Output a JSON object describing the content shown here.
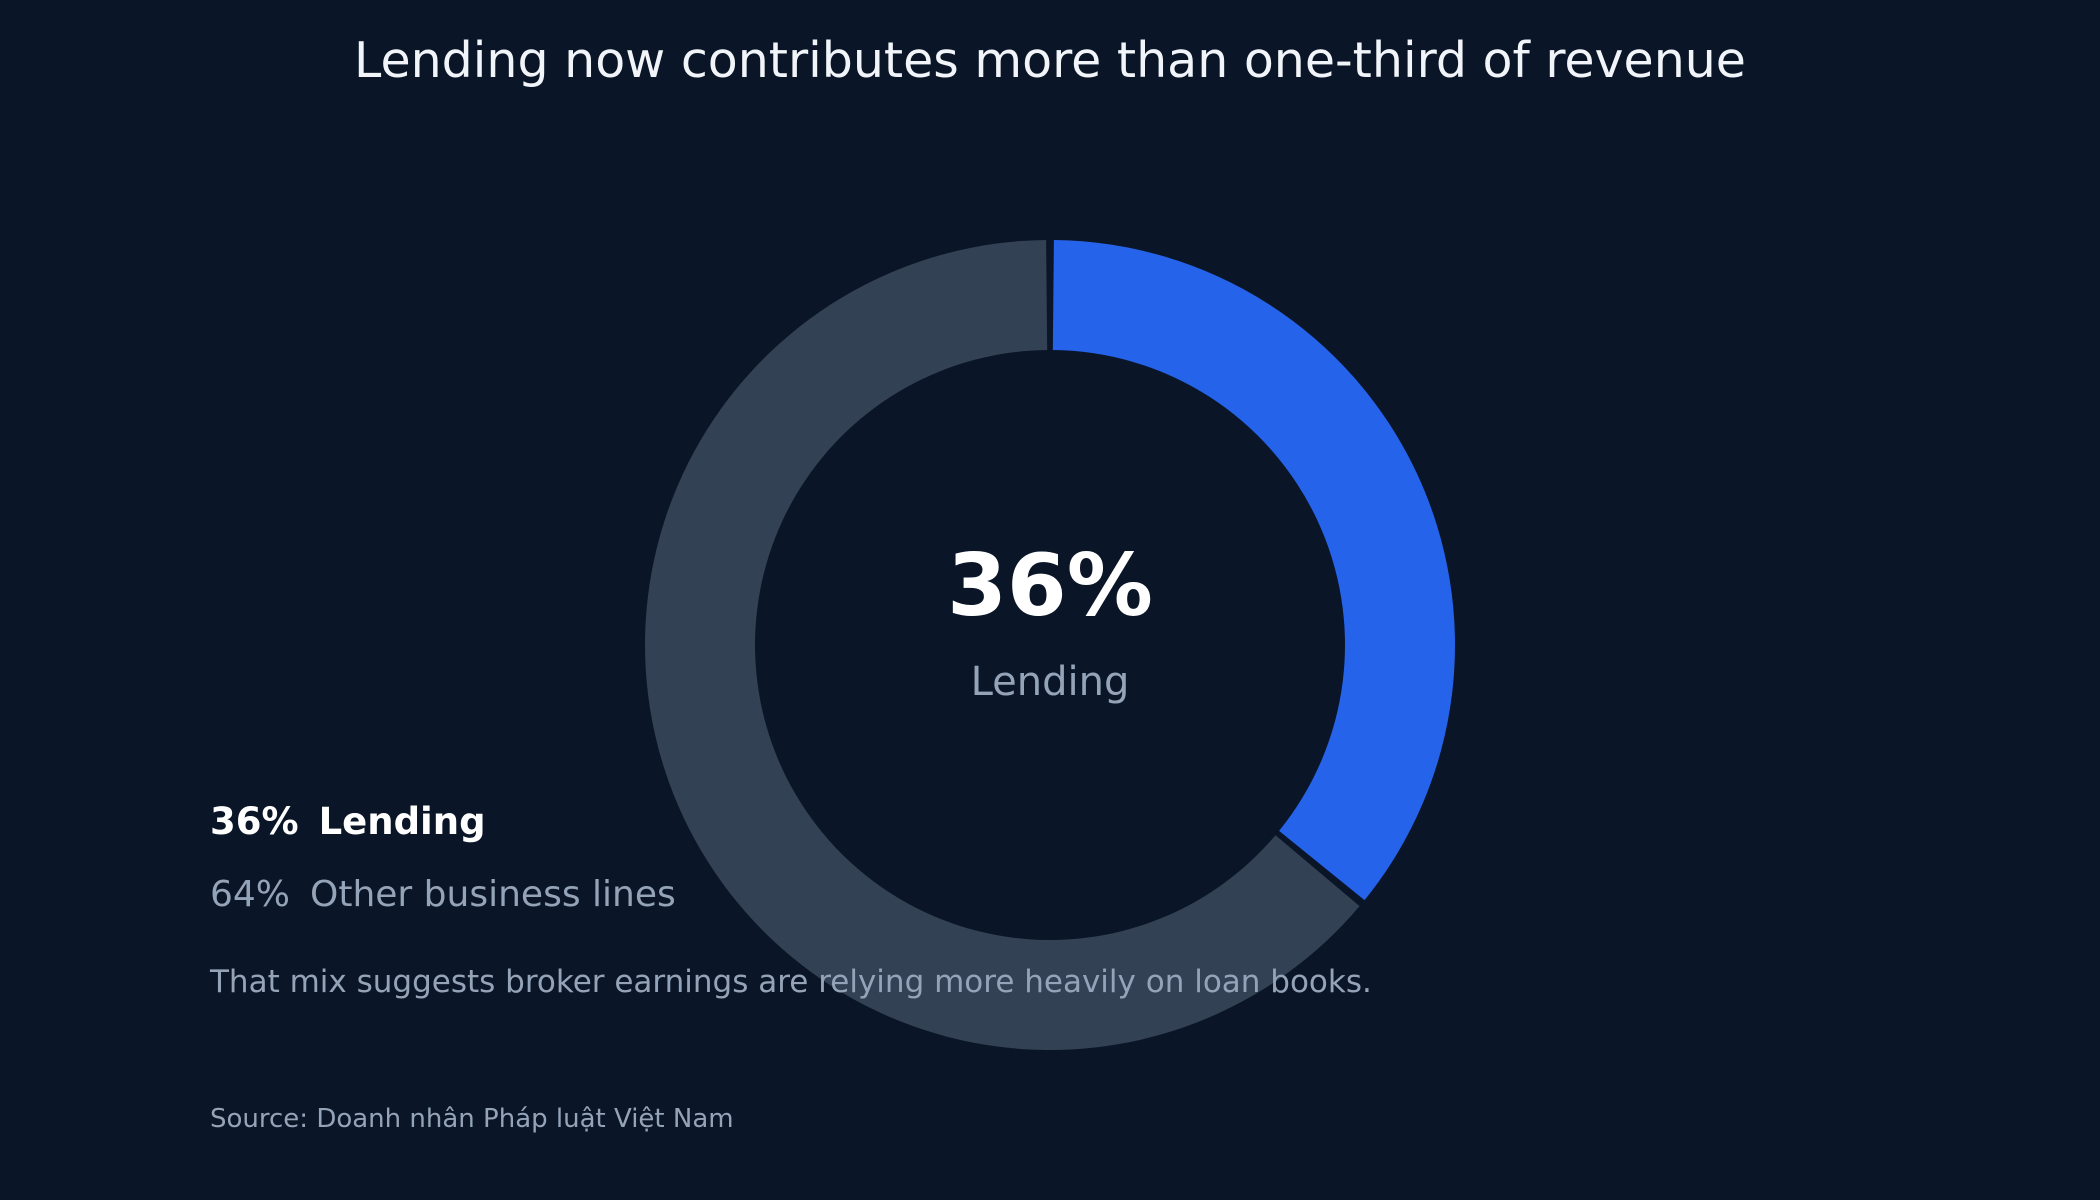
{
  "title": "Lending now contributes more than one-third of revenue",
  "chart_data": {
    "type": "pie",
    "variant": "donut",
    "title": "Lending now contributes more than one-third of revenue",
    "slices": [
      {
        "label": "Lending",
        "value": 36,
        "display": "36%",
        "color": "#2563eb"
      },
      {
        "label": "Other business lines",
        "value": 64,
        "display": "64%",
        "color": "#334155"
      }
    ],
    "center": {
      "value": "36%",
      "label": "Lending"
    }
  },
  "legend": [
    {
      "pct": "36%",
      "label": "Lending"
    },
    {
      "pct": "64%",
      "label": "Other business lines"
    }
  ],
  "note": "That mix suggests broker earnings are relying more heavily on loan books.",
  "source": "Source: Doanh nhân Pháp luật Việt Nam",
  "colors": {
    "background": "#0a1628",
    "accent": "#2563eb",
    "muted_slice": "#334155",
    "muted_text": "#94a3b8"
  }
}
